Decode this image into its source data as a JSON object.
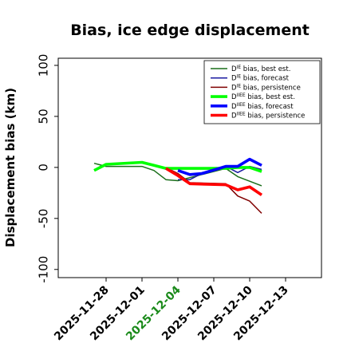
{
  "chart_data": {
    "type": "line",
    "title": "Bias, ice edge displacement",
    "xlabel": "",
    "ylabel": "Displacement bias (km)",
    "ylim": [
      -108,
      107
    ],
    "yticks": [
      100,
      50,
      0,
      -50,
      -100
    ],
    "xlim": [
      "2025-11-24",
      "2025-12-16"
    ],
    "xticks": [
      {
        "label": "2025-11-28",
        "color": "#000000"
      },
      {
        "label": "2025-12-01",
        "color": "#000000"
      },
      {
        "label": "2025-12-04",
        "color": "#1a8a1a"
      },
      {
        "label": "2025-12-07",
        "color": "#000000"
      },
      {
        "label": "2025-12-10",
        "color": "#000000"
      },
      {
        "label": "2025-12-13",
        "color": "#000000"
      }
    ],
    "grid": false,
    "legend_position": "top-right",
    "series": [
      {
        "name": "D^IE bias, best est.",
        "color": "#1a6e1a",
        "width": "thin",
        "points": [
          [
            "2025-11-27",
            4
          ],
          [
            "2025-11-28",
            1
          ],
          [
            "2025-12-01",
            1
          ],
          [
            "2025-12-02",
            -3
          ],
          [
            "2025-12-03",
            -12
          ],
          [
            "2025-12-04",
            -13
          ],
          [
            "2025-12-05",
            -10
          ],
          [
            "2025-12-06",
            -7
          ],
          [
            "2025-12-08",
            -1
          ],
          [
            "2025-12-09",
            -9
          ],
          [
            "2025-12-11",
            -18
          ]
        ]
      },
      {
        "name": "D^IE bias, forecast",
        "color": "#1a1aa0",
        "width": "thin",
        "points": [
          [
            "2025-12-04",
            -12
          ],
          [
            "2025-12-05",
            -12
          ],
          [
            "2025-12-06",
            -6
          ],
          [
            "2025-12-08",
            1
          ],
          [
            "2025-12-09",
            -5
          ],
          [
            "2025-12-10",
            1
          ],
          [
            "2025-12-11",
            -2
          ]
        ]
      },
      {
        "name": "D^IE bias, persistence",
        "color": "#800000",
        "width": "thin",
        "points": [
          [
            "2025-12-03",
            0
          ],
          [
            "2025-12-04",
            -6
          ],
          [
            "2025-12-05",
            -15
          ],
          [
            "2025-12-08",
            -16
          ],
          [
            "2025-12-09",
            -28
          ],
          [
            "2025-12-10",
            -33
          ],
          [
            "2025-12-11",
            -45
          ]
        ]
      },
      {
        "name": "D^IIEE bias, best est.",
        "color": "#00ff00",
        "width": "thick",
        "points": [
          [
            "2025-11-27",
            -3
          ],
          [
            "2025-11-28",
            3
          ],
          [
            "2025-12-01",
            5
          ],
          [
            "2025-12-02",
            2
          ],
          [
            "2025-12-03",
            -1
          ],
          [
            "2025-12-04",
            -1
          ],
          [
            "2025-12-05",
            -1
          ],
          [
            "2025-12-08",
            -1
          ],
          [
            "2025-12-09",
            0
          ],
          [
            "2025-12-10",
            0
          ],
          [
            "2025-12-11",
            -4
          ]
        ]
      },
      {
        "name": "D^IIEE bias, forecast",
        "color": "#0000ff",
        "width": "thick",
        "points": [
          [
            "2025-12-04",
            -3
          ],
          [
            "2025-12-05",
            -7
          ],
          [
            "2025-12-06",
            -6
          ],
          [
            "2025-12-08",
            1
          ],
          [
            "2025-12-09",
            1
          ],
          [
            "2025-12-10",
            8
          ],
          [
            "2025-12-11",
            2
          ]
        ]
      },
      {
        "name": "D^IIEE bias, persistence",
        "color": "#ff0000",
        "width": "thick",
        "points": [
          [
            "2025-12-03",
            -1
          ],
          [
            "2025-12-04",
            -8
          ],
          [
            "2025-12-05",
            -16
          ],
          [
            "2025-12-08",
            -17
          ],
          [
            "2025-12-09",
            -22
          ],
          [
            "2025-12-10",
            -19
          ],
          [
            "2025-12-11",
            -27
          ]
        ]
      }
    ],
    "legend": {
      "entries": [
        {
          "prefix": "D",
          "sup": "IE",
          "text": " bias, best est."
        },
        {
          "prefix": "D",
          "sup": "IE",
          "text": " bias, forecast"
        },
        {
          "prefix": "D",
          "sup": "IE",
          "text": " bias, persistence"
        },
        {
          "prefix": "D",
          "sup": "IIEE",
          "text": " bias, best est."
        },
        {
          "prefix": "D",
          "sup": "IIEE",
          "text": " bias, forecast"
        },
        {
          "prefix": "D",
          "sup": "IIEE",
          "text": " bias, persistence"
        }
      ]
    }
  }
}
